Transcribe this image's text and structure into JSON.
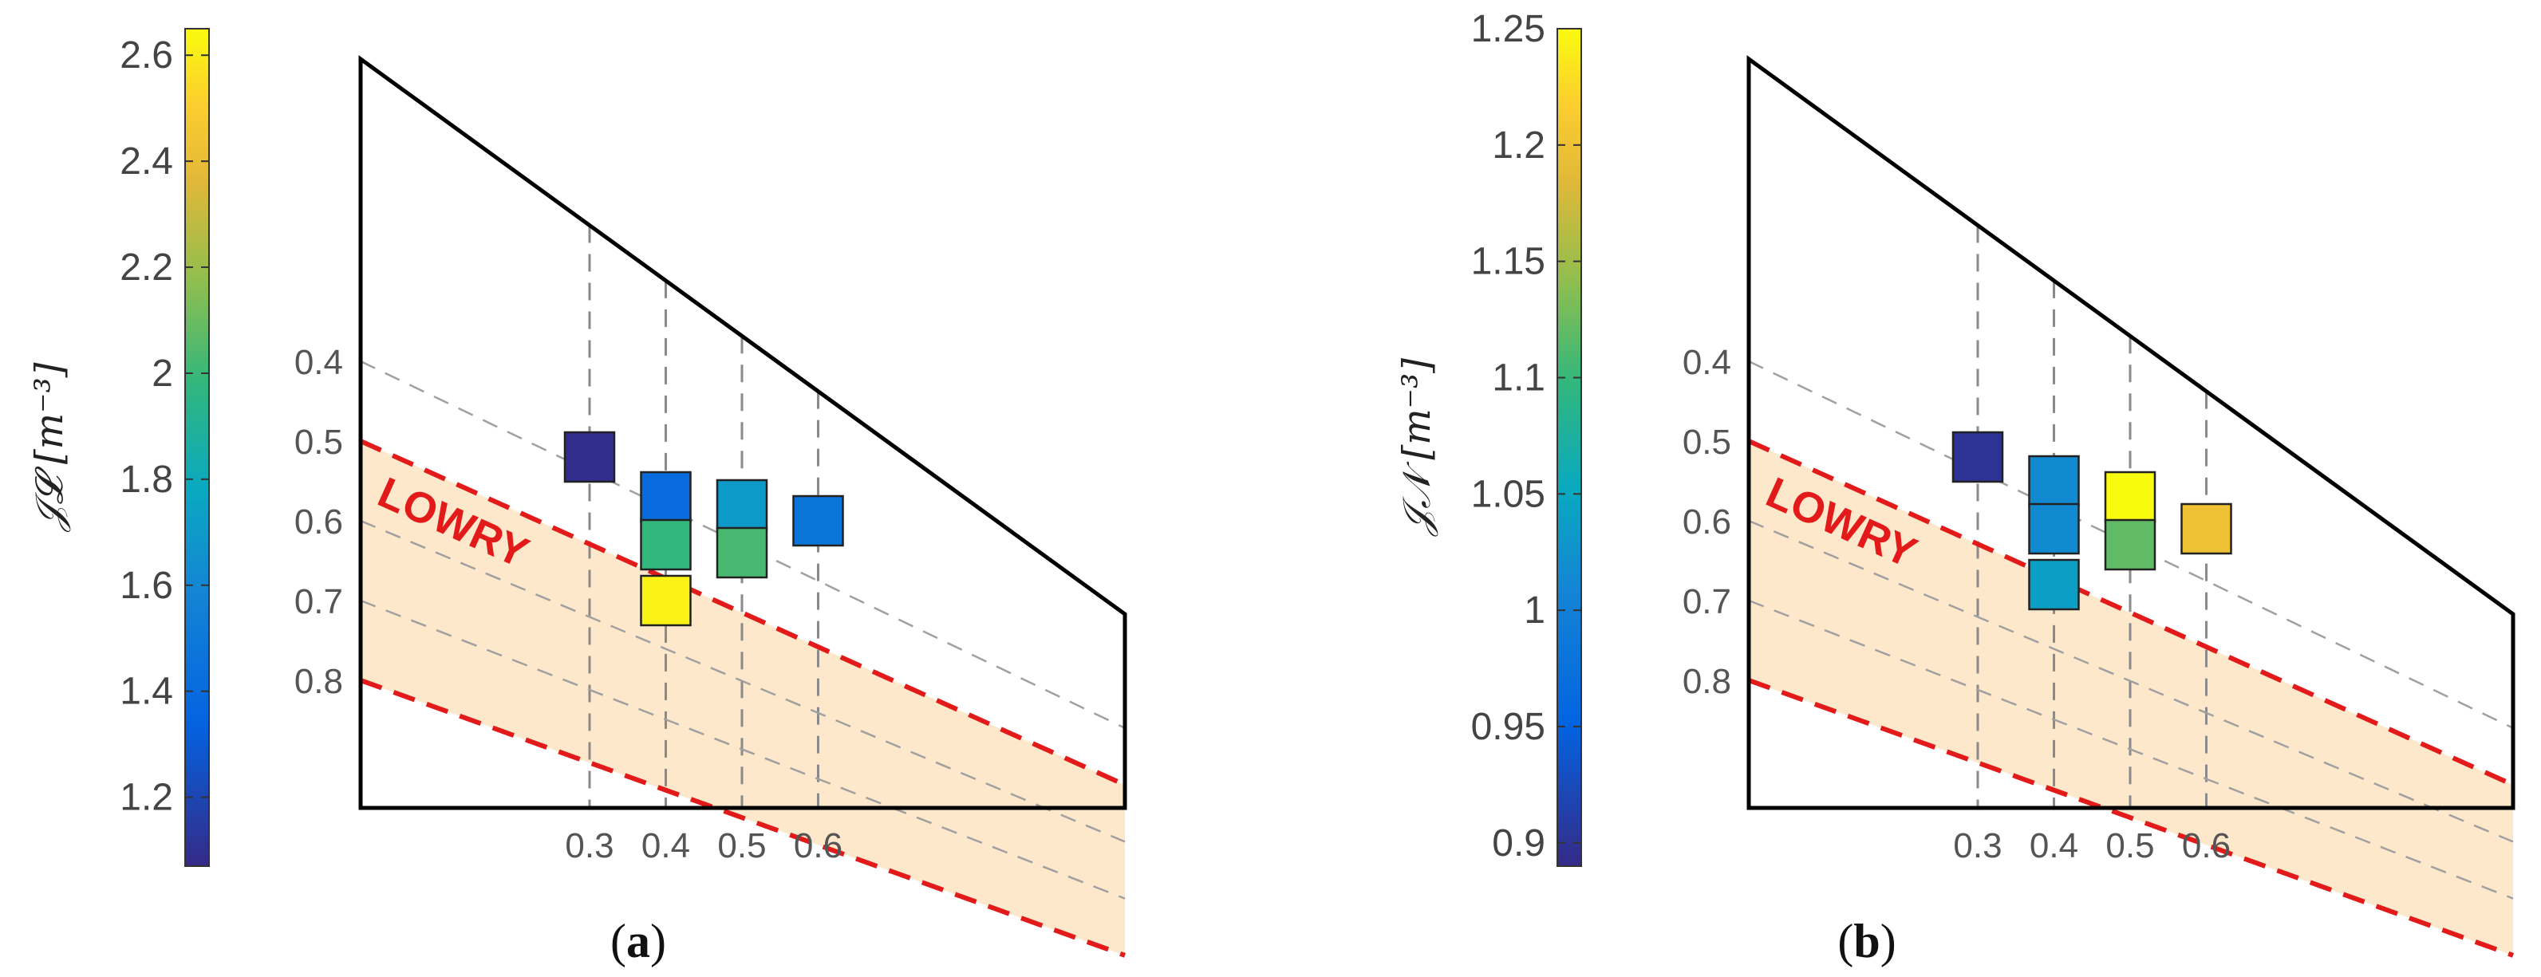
{
  "figure": {
    "panels": [
      {
        "panel_label": "a",
        "region_label": "LOWRY",
        "colorbar": {
          "label": "𝒥𝓛 [m⁻³]",
          "min": 1.07,
          "max": 2.65,
          "ticks": [
            "1.2",
            "1.4",
            "1.6",
            "1.8",
            "2",
            "2.2",
            "2.4",
            "2.6"
          ]
        },
        "tick_labels": {
          "left": [
            "0.4",
            "0.5",
            "0.6",
            "0.7",
            "0.8"
          ],
          "bottom": [
            "0.3",
            "0.4",
            "0.5",
            "0.6"
          ]
        }
      },
      {
        "panel_label": "b",
        "region_label": "LOWRY",
        "colorbar": {
          "label": "𝒥𝒩 [m⁻³]",
          "min": 0.89,
          "max": 1.25,
          "ticks": [
            "0.9",
            "0.95",
            "1",
            "1.05",
            "1.1",
            "1.15",
            "1.2",
            "1.25"
          ]
        },
        "tick_labels": {
          "left": [
            "0.4",
            "0.5",
            "0.6",
            "0.7",
            "0.8"
          ],
          "bottom": [
            "0.3",
            "0.4",
            "0.5",
            "0.6"
          ]
        }
      }
    ]
  },
  "chart_data": [
    {
      "type": "heatmap",
      "xlabel": "",
      "ylabel": "",
      "grid": true,
      "colormap": "parula",
      "x_ticks": [
        0.3,
        0.4,
        0.5,
        0.6
      ],
      "diag_ticks": [
        0.4,
        0.5,
        0.6,
        0.7,
        0.8
      ],
      "region": {
        "name": "LOWRY",
        "from": 0.5,
        "to": 0.8,
        "color": "#fde8cc"
      },
      "colorbar": {
        "min": 1.07,
        "max": 2.65
      },
      "points": [
        {
          "x": 0.3,
          "y": 0.52,
          "value": 1.09
        },
        {
          "x": 0.4,
          "y": 0.57,
          "value": 1.4
        },
        {
          "x": 0.4,
          "y": 0.63,
          "value": 1.98
        },
        {
          "x": 0.4,
          "y": 0.7,
          "value": 2.62
        },
        {
          "x": 0.5,
          "y": 0.58,
          "value": 1.7
        },
        {
          "x": 0.5,
          "y": 0.64,
          "value": 2.03
        },
        {
          "x": 0.6,
          "y": 0.6,
          "value": 1.47
        }
      ]
    },
    {
      "type": "heatmap",
      "xlabel": "",
      "ylabel": "",
      "grid": true,
      "colormap": "parula",
      "x_ticks": [
        0.3,
        0.4,
        0.5,
        0.6
      ],
      "diag_ticks": [
        0.4,
        0.5,
        0.6,
        0.7,
        0.8
      ],
      "region": {
        "name": "LOWRY",
        "from": 0.5,
        "to": 0.8,
        "color": "#fde8cc"
      },
      "colorbar": {
        "min": 0.89,
        "max": 1.25
      },
      "points": [
        {
          "x": 0.3,
          "y": 0.52,
          "value": 0.9
        },
        {
          "x": 0.4,
          "y": 0.55,
          "value": 1.015
        },
        {
          "x": 0.4,
          "y": 0.61,
          "value": 1.015
        },
        {
          "x": 0.4,
          "y": 0.68,
          "value": 1.04
        },
        {
          "x": 0.5,
          "y": 0.57,
          "value": 1.25
        },
        {
          "x": 0.5,
          "y": 0.63,
          "value": 1.12
        },
        {
          "x": 0.6,
          "y": 0.61,
          "value": 1.2
        }
      ]
    }
  ]
}
